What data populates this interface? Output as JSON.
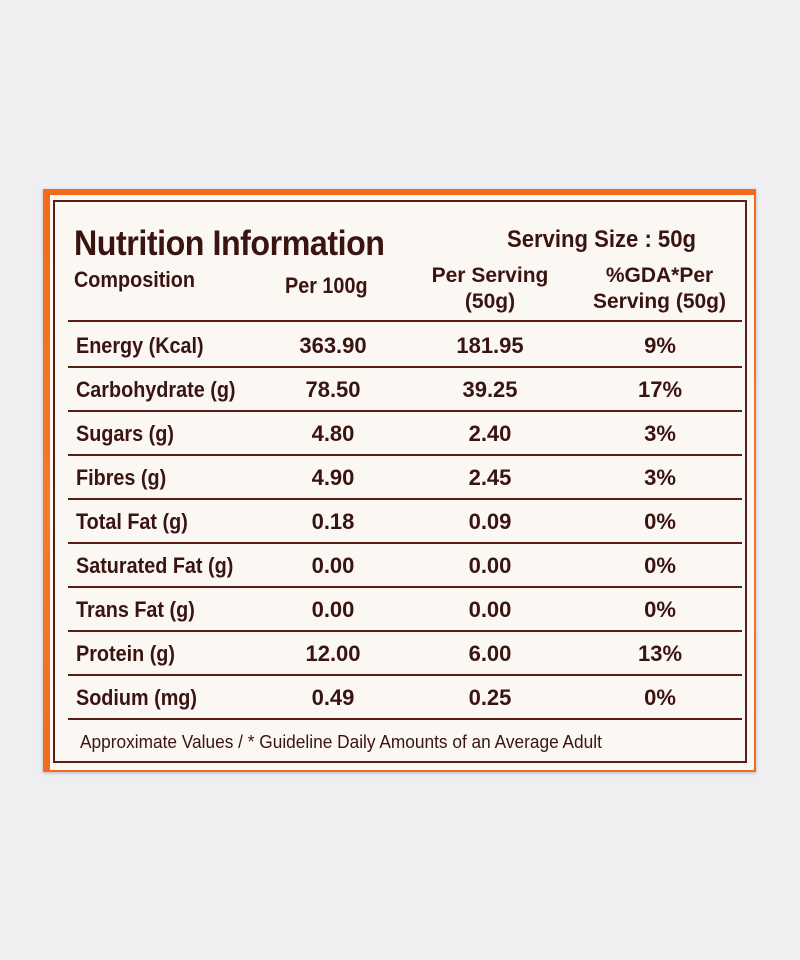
{
  "panel": {
    "title": "Nutrition Information",
    "serving_size": "Serving Size : 50g"
  },
  "columns": {
    "composition": "Composition",
    "per_100g": "Per 100g",
    "per_serving_line1": "Per Serving",
    "per_serving_line2": "(50g)",
    "gda_line1": "%GDA*Per",
    "gda_line2": "Serving (50g)"
  },
  "rows": [
    {
      "name": "Energy (Kcal)",
      "per_100g": "363.90",
      "per_serving": "181.95",
      "gda": "9%"
    },
    {
      "name": "Carbohydrate (g)",
      "per_100g": "78.50",
      "per_serving": "39.25",
      "gda": "17%"
    },
    {
      "name": "Sugars (g)",
      "per_100g": "4.80",
      "per_serving": "2.40",
      "gda": "3%"
    },
    {
      "name": "Fibres (g)",
      "per_100g": "4.90",
      "per_serving": "2.45",
      "gda": "3%"
    },
    {
      "name": "Total Fat (g)",
      "per_100g": "0.18",
      "per_serving": "0.09",
      "gda": "0%"
    },
    {
      "name": "Saturated Fat (g)",
      "per_100g": "0.00",
      "per_serving": "0.00",
      "gda": "0%"
    },
    {
      "name": "Trans Fat (g)",
      "per_100g": "0.00",
      "per_serving": "0.00",
      "gda": "0%"
    },
    {
      "name": "Protein (g)",
      "per_100g": "12.00",
      "per_serving": "6.00",
      "gda": "13%"
    },
    {
      "name": "Sodium (mg)",
      "per_100g": "0.49",
      "per_serving": "0.25",
      "gda": "0%"
    }
  ],
  "footnote": "Approximate Values / * Guideline Daily Amounts of an Average Adult",
  "colors": {
    "background": "#efeff1",
    "packet_orange": "#f26a1c",
    "label_paper": "#fbf7f3",
    "ink": "#3a1410",
    "rule": "#5a1f14"
  }
}
